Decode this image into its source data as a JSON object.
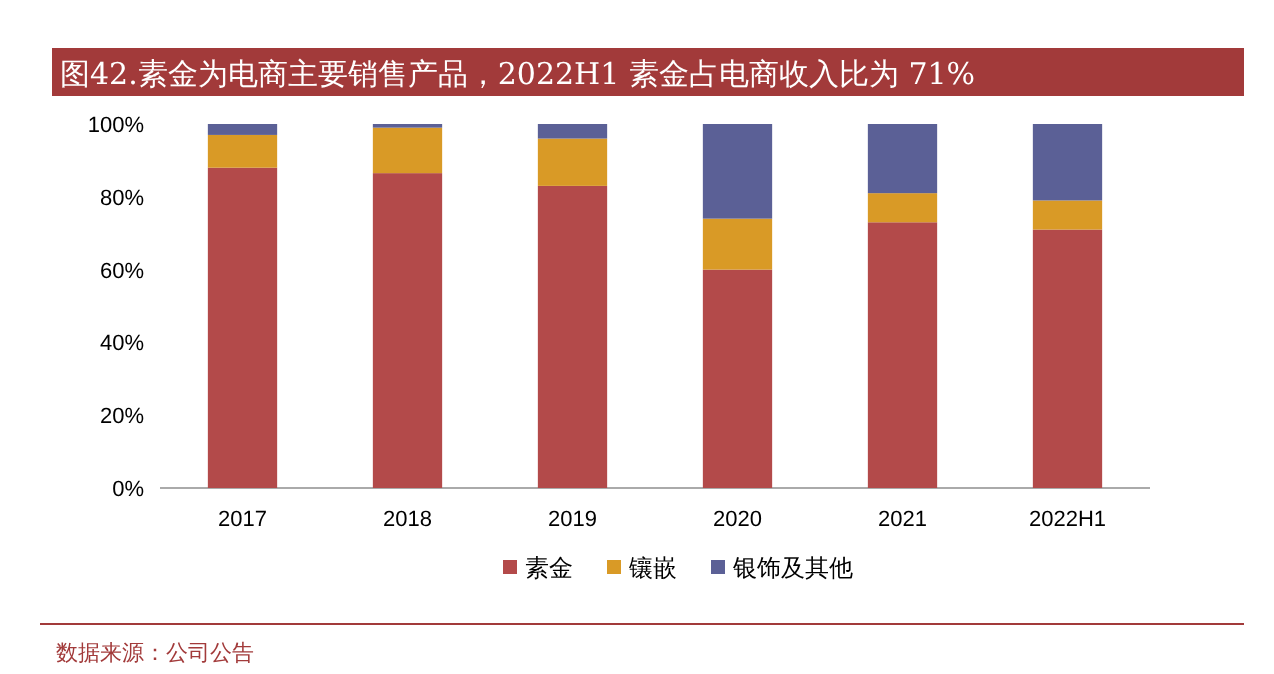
{
  "chart_data": {
    "type": "bar",
    "stacked": true,
    "title": "图42.素金为电商主要销售产品，2022H1 素金占电商收入比为 71%",
    "categories": [
      "2017",
      "2018",
      "2019",
      "2020",
      "2021",
      "2022H1"
    ],
    "series": [
      {
        "name": "素金",
        "color": "#b34a4a",
        "values": [
          88,
          86.5,
          83,
          60,
          73,
          71
        ]
      },
      {
        "name": "镶嵌",
        "color": "#d99a26",
        "values": [
          9,
          12.5,
          13,
          14,
          8,
          8
        ]
      },
      {
        "name": "银饰及其他",
        "color": "#5b6096",
        "values": [
          3,
          1,
          4,
          26,
          19,
          21
        ]
      }
    ],
    "ylim": [
      0,
      100
    ],
    "yticks": [
      {
        "value": 0,
        "label": "0%"
      },
      {
        "value": 20,
        "label": "20%"
      },
      {
        "value": 40,
        "label": "40%"
      },
      {
        "value": 60,
        "label": "60%"
      },
      {
        "value": 80,
        "label": "80%"
      },
      {
        "value": 100,
        "label": "100%"
      }
    ],
    "legend": "bottom",
    "grid": false,
    "annotations": [
      "数据来源：公司公告"
    ]
  }
}
